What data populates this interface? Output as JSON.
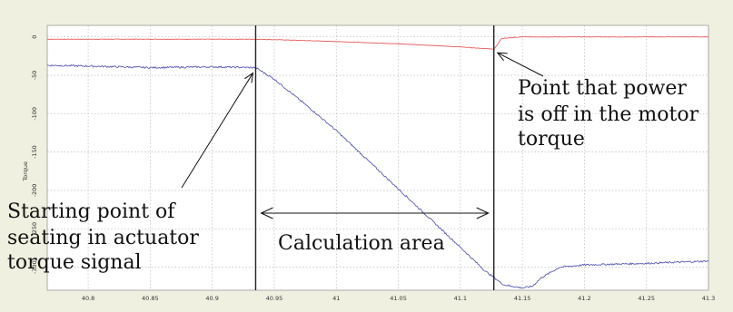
{
  "chart_data": {
    "type": "line",
    "ylabel": "Torque",
    "xlim": [
      40.767,
      41.3
    ],
    "ylim": [
      -330,
      15
    ],
    "x_ticks": [
      40.8,
      40.85,
      40.9,
      40.95,
      41,
      41.05,
      41.1,
      41.15,
      41.2,
      41.25,
      41.3
    ],
    "y_ticks": [
      0,
      -50,
      -100,
      -150,
      -200,
      -250,
      -300
    ],
    "x_tick_labels": [
      "40.8",
      "40.85",
      "40.9",
      "40.95",
      "41",
      "41.05",
      "41.1",
      "41.15",
      "41.2",
      "41.25",
      "41.3"
    ],
    "y_tick_labels": [
      "0",
      "-50",
      "-100",
      "-150",
      "-200",
      "-250",
      "-300"
    ],
    "grid": true,
    "series": [
      {
        "color": "#e85a5a",
        "x": [
          40.767,
          40.9,
          40.935,
          40.96,
          41.0,
          41.05,
          41.1,
          41.127,
          41.13,
          41.133,
          41.15,
          41.2,
          41.3
        ],
        "y": [
          -3,
          -3,
          -3,
          -4,
          -6,
          -9,
          -13,
          -16,
          -10,
          -2,
          0,
          0,
          0
        ]
      },
      {
        "color": "#5a5ab4",
        "x": [
          40.767,
          40.8,
          40.85,
          40.9,
          40.935,
          40.95,
          40.975,
          41.0,
          41.025,
          41.05,
          41.075,
          41.1,
          41.12,
          41.135,
          41.15,
          41.158,
          41.165,
          41.18,
          41.2,
          41.25,
          41.3
        ],
        "y": [
          -37,
          -38,
          -40,
          -39,
          -40,
          -55,
          -88,
          -122,
          -160,
          -198,
          -236,
          -274,
          -305,
          -323,
          -327,
          -325,
          -314,
          -300,
          -297,
          -295,
          -292
        ]
      }
    ],
    "annotations": {
      "start_point": [
        "Starting point of",
        "seating in actuator",
        "torque signal"
      ],
      "power_off": [
        "Point that power",
        "is off in the motor",
        "torque"
      ],
      "calculation_area": "Calculation area"
    },
    "vertical_markers": [
      40.935,
      41.127
    ],
    "area_range": [
      40.935,
      41.127
    ]
  }
}
